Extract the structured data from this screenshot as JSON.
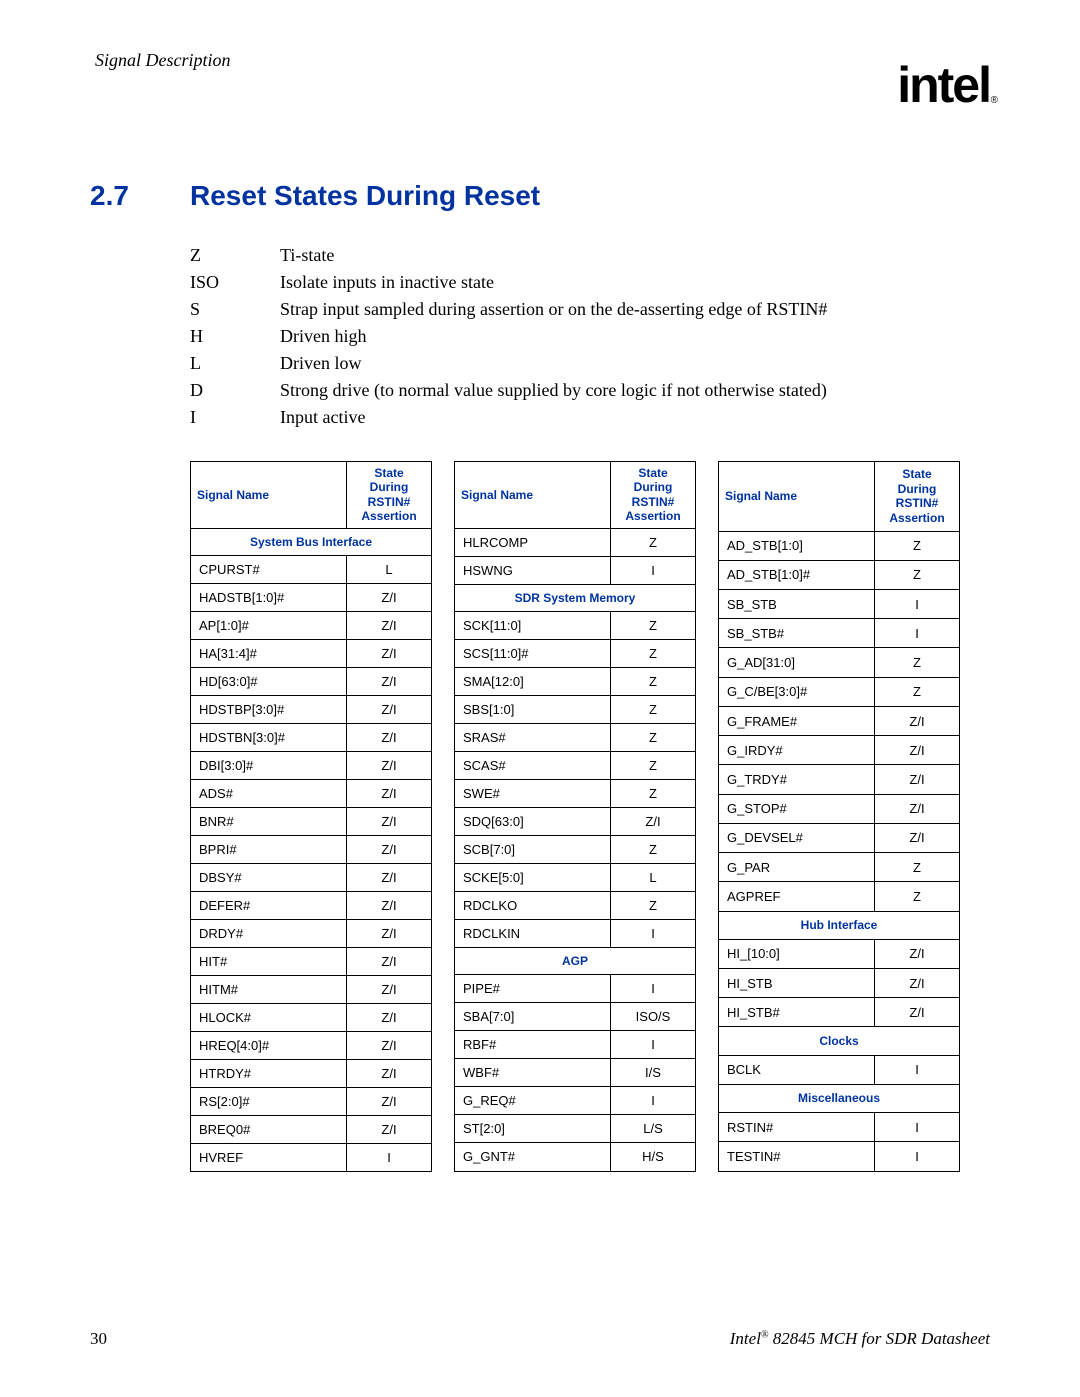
{
  "page": {
    "header": "Signal Description",
    "logo_text": "intel",
    "section_number": "2.7",
    "section_title": "Reset States During Reset",
    "page_number": "30",
    "footer_brand": "Intel",
    "footer_text": " 82845 MCH for SDR Datasheet",
    "colors": {
      "heading_blue": "#0033a0",
      "text": "#000000",
      "bg": "#ffffff"
    },
    "fonts": {
      "body": "Times New Roman",
      "heading": "Arial",
      "table": "Arial"
    }
  },
  "legend": [
    {
      "code": "Z",
      "desc": "Ti-state"
    },
    {
      "code": "ISO",
      "desc": "Isolate inputs in inactive state"
    },
    {
      "code": "S",
      "desc": "Strap input sampled during assertion or on the de-asserting edge of RSTIN#"
    },
    {
      "code": "H",
      "desc": "Driven high"
    },
    {
      "code": "L",
      "desc": "Driven low"
    },
    {
      "code": "D",
      "desc": "Strong drive (to normal value supplied by core logic if not otherwise stated)"
    },
    {
      "code": "I",
      "desc": "Input active"
    }
  ],
  "table_header": {
    "col1": "Signal Name",
    "col2_l1": "State",
    "col2_l2": "During",
    "col2_l3": "RSTIN#",
    "col2_l4": "Assertion"
  },
  "columns": [
    {
      "items": [
        {
          "type": "section",
          "label": "System Bus Interface"
        },
        {
          "type": "row",
          "name": "CPURST#",
          "state": "L"
        },
        {
          "type": "row",
          "name": "HADSTB[1:0]#",
          "state": "Z/I"
        },
        {
          "type": "row",
          "name": "AP[1:0]#",
          "state": "Z/I"
        },
        {
          "type": "row",
          "name": "HA[31:4]#",
          "state": "Z/I"
        },
        {
          "type": "row",
          "name": "HD[63:0]#",
          "state": "Z/I"
        },
        {
          "type": "row",
          "name": "HDSTBP[3:0]#",
          "state": "Z/I"
        },
        {
          "type": "row",
          "name": "HDSTBN[3:0]#",
          "state": "Z/I"
        },
        {
          "type": "row",
          "name": "DBI[3:0]#",
          "state": "Z/I"
        },
        {
          "type": "row",
          "name": "ADS#",
          "state": "Z/I"
        },
        {
          "type": "row",
          "name": "BNR#",
          "state": "Z/I"
        },
        {
          "type": "row",
          "name": "BPRI#",
          "state": "Z/I"
        },
        {
          "type": "row",
          "name": "DBSY#",
          "state": "Z/I"
        },
        {
          "type": "row",
          "name": "DEFER#",
          "state": "Z/I"
        },
        {
          "type": "row",
          "name": "DRDY#",
          "state": "Z/I"
        },
        {
          "type": "row",
          "name": "HIT#",
          "state": "Z/I"
        },
        {
          "type": "row",
          "name": "HITM#",
          "state": "Z/I"
        },
        {
          "type": "row",
          "name": "HLOCK#",
          "state": "Z/I"
        },
        {
          "type": "row",
          "name": "HREQ[4:0]#",
          "state": "Z/I"
        },
        {
          "type": "row",
          "name": "HTRDY#",
          "state": "Z/I"
        },
        {
          "type": "row",
          "name": "RS[2:0]#",
          "state": "Z/I"
        },
        {
          "type": "row",
          "name": "BREQ0#",
          "state": "Z/I"
        },
        {
          "type": "row",
          "name": "HVREF",
          "state": "I"
        }
      ]
    },
    {
      "items": [
        {
          "type": "row",
          "name": "HLRCOMP",
          "state": "Z"
        },
        {
          "type": "row",
          "name": "HSWNG",
          "state": "I"
        },
        {
          "type": "section",
          "label": "SDR System Memory"
        },
        {
          "type": "row",
          "name": "SCK[11:0]",
          "state": "Z"
        },
        {
          "type": "row",
          "name": "SCS[11:0]#",
          "state": "Z"
        },
        {
          "type": "row",
          "name": "SMA[12:0]",
          "state": "Z"
        },
        {
          "type": "row",
          "name": "SBS[1:0]",
          "state": "Z"
        },
        {
          "type": "row",
          "name": "SRAS#",
          "state": "Z"
        },
        {
          "type": "row",
          "name": "SCAS#",
          "state": "Z"
        },
        {
          "type": "row",
          "name": "SWE#",
          "state": "Z"
        },
        {
          "type": "row",
          "name": "SDQ[63:0]",
          "state": "Z/I"
        },
        {
          "type": "row",
          "name": "SCB[7:0]",
          "state": "Z"
        },
        {
          "type": "row",
          "name": "SCKE[5:0]",
          "state": "L"
        },
        {
          "type": "row",
          "name": "RDCLKO",
          "state": "Z"
        },
        {
          "type": "row",
          "name": "RDCLKIN",
          "state": "I"
        },
        {
          "type": "section",
          "label": "AGP"
        },
        {
          "type": "row",
          "name": "PIPE#",
          "state": "I"
        },
        {
          "type": "row",
          "name": "SBA[7:0]",
          "state": "ISO/S"
        },
        {
          "type": "row",
          "name": "RBF#",
          "state": "I"
        },
        {
          "type": "row",
          "name": "WBF#",
          "state": "I/S"
        },
        {
          "type": "row",
          "name": "G_REQ#",
          "state": "I"
        },
        {
          "type": "row",
          "name": "ST[2:0]",
          "state": "L/S"
        },
        {
          "type": "row",
          "name": "G_GNT#",
          "state": "H/S"
        }
      ]
    },
    {
      "items": [
        {
          "type": "row",
          "name": "AD_STB[1:0]",
          "state": "Z"
        },
        {
          "type": "row",
          "name": "AD_STB[1:0]#",
          "state": "Z"
        },
        {
          "type": "row",
          "name": "SB_STB",
          "state": "I"
        },
        {
          "type": "row",
          "name": "SB_STB#",
          "state": "I"
        },
        {
          "type": "row",
          "name": "G_AD[31:0]",
          "state": "Z"
        },
        {
          "type": "row",
          "name": "G_C/BE[3:0]#",
          "state": "Z"
        },
        {
          "type": "row",
          "name": "G_FRAME#",
          "state": "Z/I"
        },
        {
          "type": "row",
          "name": "G_IRDY#",
          "state": "Z/I"
        },
        {
          "type": "row",
          "name": "G_TRDY#",
          "state": "Z/I"
        },
        {
          "type": "row",
          "name": "G_STOP#",
          "state": "Z/I"
        },
        {
          "type": "row",
          "name": "G_DEVSEL#",
          "state": "Z/I"
        },
        {
          "type": "row",
          "name": "G_PAR",
          "state": "Z"
        },
        {
          "type": "row",
          "name": "AGPREF",
          "state": "Z"
        },
        {
          "type": "section",
          "label": "Hub Interface"
        },
        {
          "type": "row",
          "name": "HI_[10:0]",
          "state": "Z/I"
        },
        {
          "type": "row",
          "name": "HI_STB",
          "state": "Z/I"
        },
        {
          "type": "row",
          "name": "HI_STB#",
          "state": "Z/I"
        },
        {
          "type": "section",
          "label": "Clocks"
        },
        {
          "type": "row",
          "name": "BCLK",
          "state": "I"
        },
        {
          "type": "section",
          "label": "Miscellaneous"
        },
        {
          "type": "row",
          "name": "RSTIN#",
          "state": "I"
        },
        {
          "type": "row",
          "name": "TESTIN#",
          "state": "I"
        }
      ]
    }
  ]
}
